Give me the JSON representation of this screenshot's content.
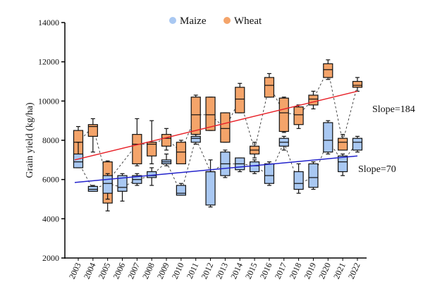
{
  "chart_data": {
    "type": "box",
    "title": "",
    "xlabel": "",
    "ylabel": "Grain yield (kg/ha)",
    "ylim": [
      2000,
      14000
    ],
    "yticks": [
      2000,
      4000,
      6000,
      8000,
      10000,
      12000,
      14000
    ],
    "legend_position": "top-center",
    "categories": [
      "2003",
      "2004",
      "2005",
      "2006",
      "2007",
      "2008",
      "2009",
      "2010",
      "2011",
      "2012",
      "2013",
      "2014",
      "2015",
      "2016",
      "2017",
      "2018",
      "2019",
      "2020",
      "2021",
      "2022"
    ],
    "series": [
      {
        "name": "Maize",
        "color": "#A9C8F2",
        "trend_color": "#2323CC",
        "slope_label": "Slope=70",
        "trend": [
          5850,
          7200
        ],
        "boxes": [
          [
            6600,
            6600,
            6900,
            7300,
            7900
          ],
          [
            5400,
            5400,
            5500,
            5650,
            5700
          ],
          [
            5000,
            5300,
            5800,
            6200,
            6300
          ],
          [
            4900,
            5400,
            5600,
            6200,
            6300
          ],
          [
            5700,
            5800,
            6000,
            6200,
            6300
          ],
          [
            5700,
            6100,
            6200,
            6400,
            6600
          ],
          [
            6700,
            6800,
            6900,
            7000,
            7300
          ],
          [
            5200,
            5200,
            5300,
            5700,
            5800
          ],
          [
            7800,
            7900,
            8100,
            8200,
            8300
          ],
          [
            4600,
            4700,
            6400,
            6400,
            7000
          ],
          [
            6100,
            6200,
            6800,
            7400,
            7500
          ],
          [
            6400,
            6500,
            6800,
            7100,
            7100
          ],
          [
            6300,
            6400,
            6700,
            6900,
            7000
          ],
          [
            5700,
            5800,
            6200,
            6800,
            6900
          ],
          [
            7500,
            7700,
            7900,
            8100,
            8200
          ],
          [
            5300,
            5500,
            5800,
            6400,
            6800
          ],
          [
            5500,
            5600,
            6100,
            6800,
            6900
          ],
          [
            7300,
            7400,
            8000,
            8900,
            9000
          ],
          [
            6200,
            6400,
            6900,
            7200,
            7300
          ],
          [
            7400,
            7500,
            7900,
            8100,
            8200
          ]
        ]
      },
      {
        "name": "Wheat",
        "color": "#F4A46A",
        "trend_color": "#E8232A",
        "slope_label": "Slope=184",
        "trend": [
          7000,
          10500
        ],
        "boxes": [
          [
            7100,
            7100,
            7900,
            8500,
            8700
          ],
          [
            7400,
            8200,
            8700,
            8800,
            9100
          ],
          [
            4400,
            4800,
            5900,
            6900,
            6950
          ],
          null,
          [
            6700,
            6800,
            7800,
            8300,
            9100
          ],
          [
            6800,
            7200,
            7800,
            7900,
            9000
          ],
          [
            7500,
            7700,
            8100,
            8300,
            8600
          ],
          [
            6800,
            6800,
            7400,
            7900,
            8000
          ],
          [
            8300,
            8300,
            9300,
            10200,
            10300
          ],
          [
            8500,
            8500,
            9300,
            10200,
            10200
          ],
          [
            7900,
            7900,
            8600,
            9400,
            9400
          ],
          [
            9400,
            9400,
            10100,
            10700,
            10900
          ],
          [
            7100,
            7300,
            7500,
            7700,
            7900
          ],
          [
            10200,
            10200,
            10800,
            11200,
            11400
          ],
          [
            8400,
            8450,
            9400,
            10150,
            10200
          ],
          [
            8600,
            8800,
            9300,
            9700,
            9800
          ],
          [
            9600,
            9800,
            10100,
            10300,
            10500
          ],
          [
            11100,
            11200,
            11600,
            11900,
            12100
          ],
          [
            7500,
            7500,
            7900,
            8100,
            8300
          ],
          [
            10500,
            10700,
            10800,
            11000,
            11200
          ]
        ]
      }
    ]
  }
}
